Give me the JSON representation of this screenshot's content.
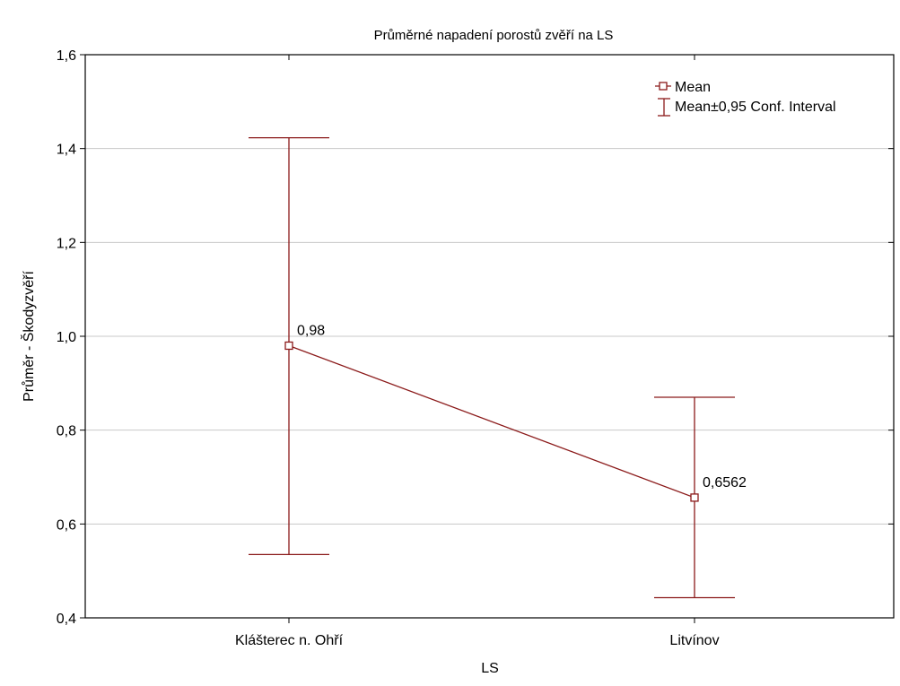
{
  "chart_data": {
    "type": "line",
    "title": "Průměrné napadení porostů zvěří na LS",
    "xlabel": "LS",
    "ylabel": "Průměr - Škodyzvěří",
    "categories": [
      "Klášterec n. Ohří",
      "Litvínov"
    ],
    "series": [
      {
        "name": "Mean",
        "values": [
          0.98,
          0.6562
        ],
        "ci_lower": [
          0.535,
          0.443
        ],
        "ci_upper": [
          1.423,
          0.87
        ],
        "data_labels": [
          "0,98",
          "0,6562"
        ]
      }
    ],
    "error_bar_label": "Mean±0,95 Conf. Interval",
    "ylim": [
      0.4,
      1.6
    ],
    "yticks": [
      "0,4",
      "0,6",
      "0,8",
      "1,0",
      "1,2",
      "1,4",
      "1,6"
    ],
    "ytick_values": [
      0.4,
      0.6,
      0.8,
      1.0,
      1.2,
      1.4,
      1.6
    ],
    "grid": true,
    "legend_position": "top-right",
    "color": "#8b1a1a"
  }
}
